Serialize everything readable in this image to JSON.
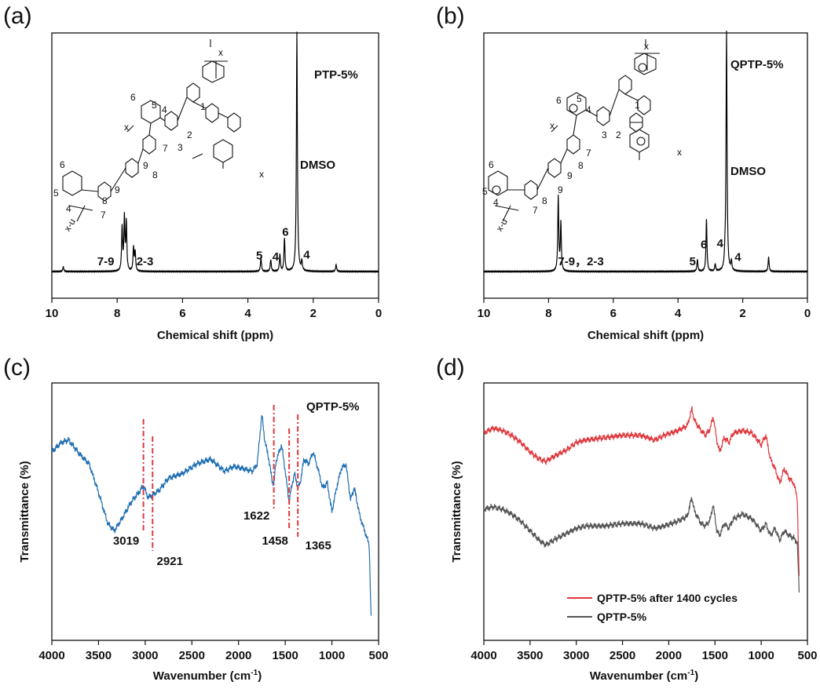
{
  "chart_data": [
    {
      "panel": "(a)",
      "type": "line",
      "title": "",
      "xlabel": "Chemical shift (ppm)",
      "ylabel": "",
      "xlim": [
        10,
        0
      ],
      "xticks": [
        "10",
        "8",
        "6",
        "4",
        "2",
        "0"
      ],
      "sample_label": "PTP-5%",
      "solvent_label": "DMSO",
      "series": [
        {
          "name": "PTP-5%",
          "color": "#000000",
          "peaks": [
            {
              "x": 9.65,
              "h": 0.02
            },
            {
              "x": 7.85,
              "h": 0.18
            },
            {
              "x": 7.78,
              "h": 0.22
            },
            {
              "x": 7.72,
              "h": 0.2
            },
            {
              "x": 7.5,
              "h": 0.1
            },
            {
              "x": 7.45,
              "h": 0.08
            },
            {
              "x": 3.6,
              "h": 0.06
            },
            {
              "x": 3.3,
              "h": 0.05
            },
            {
              "x": 3.02,
              "h": 0.07
            },
            {
              "x": 2.88,
              "h": 0.14
            },
            {
              "x": 2.5,
              "h": 1.0
            },
            {
              "x": 2.35,
              "h": 0.04
            },
            {
              "x": 1.3,
              "h": 0.03
            }
          ]
        }
      ],
      "annotations": [
        {
          "text": "7-9",
          "x": 8.35
        },
        {
          "text": "2-3",
          "x": 7.15
        },
        {
          "text": "5",
          "x": 3.65
        },
        {
          "text": "4",
          "x": 3.15
        },
        {
          "text": "6",
          "x": 2.85
        },
        {
          "text": "4",
          "x": 2.2
        }
      ],
      "structure_labels": [
        "x",
        "1",
        "2",
        "3",
        "4",
        "5",
        "6",
        "7",
        "8",
        "9",
        "x",
        "x",
        "6",
        "5",
        "4",
        "7",
        "8",
        "9",
        "x-u"
      ]
    },
    {
      "panel": "(b)",
      "type": "line",
      "title": "",
      "xlabel": "Chemical shift (ppm)",
      "ylabel": "",
      "xlim": [
        10,
        0
      ],
      "xticks": [
        "10",
        "8",
        "6",
        "4",
        "2",
        "0"
      ],
      "sample_label": "QPTP-5%",
      "solvent_label": "DMSO",
      "series": [
        {
          "name": "QPTP-5%",
          "color": "#000000",
          "peaks": [
            {
              "x": 7.7,
              "h": 0.31
            },
            {
              "x": 7.62,
              "h": 0.2
            },
            {
              "x": 3.4,
              "h": 0.05
            },
            {
              "x": 3.12,
              "h": 0.22
            },
            {
              "x": 2.85,
              "h": 0.03
            },
            {
              "x": 2.55,
              "h": 0.04
            },
            {
              "x": 2.5,
              "h": 1.0
            },
            {
              "x": 2.35,
              "h": 0.04
            },
            {
              "x": 1.2,
              "h": 0.06
            }
          ]
        }
      ],
      "annotations": [
        {
          "text": "7-9，2-3",
          "x": 7.0
        },
        {
          "text": "5",
          "x": 3.55
        },
        {
          "text": "6",
          "x": 3.2
        },
        {
          "text": "4",
          "x": 2.7
        },
        {
          "text": "4",
          "x": 2.15
        }
      ],
      "structure_labels": [
        "x",
        "1",
        "2",
        "3",
        "4",
        "5",
        "6",
        "7",
        "8",
        "9",
        "x",
        "x",
        "6",
        "5",
        "4",
        "7",
        "8",
        "9",
        "x-u"
      ]
    },
    {
      "panel": "(c)",
      "type": "line",
      "title": "",
      "xlabel": "Wavenumber (cm",
      "xlabel_sup": "-1",
      "xlabel_tail": ")",
      "ylabel": "Transmittance (%)",
      "xlim": [
        4000,
        500
      ],
      "xticks": [
        "4000",
        "3500",
        "3000",
        "2500",
        "2000",
        "1500",
        "1000",
        "500"
      ],
      "legend": "QPTP-5%",
      "series": [
        {
          "name": "QPTP-5%",
          "color": "#1f6fb2",
          "points": [
            [
              4000,
              75
            ],
            [
              3900,
              79
            ],
            [
              3820,
              80
            ],
            [
              3700,
              74
            ],
            [
              3600,
              70
            ],
            [
              3500,
              58
            ],
            [
              3400,
              45
            ],
            [
              3330,
              42
            ],
            [
              3250,
              47
            ],
            [
              3150,
              54
            ],
            [
              3050,
              59
            ],
            [
              3019,
              61
            ],
            [
              2970,
              56
            ],
            [
              2921,
              57
            ],
            [
              2850,
              59
            ],
            [
              2750,
              64
            ],
            [
              2600,
              66
            ],
            [
              2450,
              70
            ],
            [
              2300,
              72
            ],
            [
              2150,
              67
            ],
            [
              2050,
              69
            ],
            [
              1950,
              68
            ],
            [
              1850,
              67
            ],
            [
              1800,
              70
            ],
            [
              1750,
              91
            ],
            [
              1720,
              80
            ],
            [
              1680,
              73
            ],
            [
              1640,
              63
            ],
            [
              1622,
              61
            ],
            [
              1600,
              71
            ],
            [
              1540,
              78
            ],
            [
              1510,
              70
            ],
            [
              1458,
              54
            ],
            [
              1430,
              61
            ],
            [
              1400,
              66
            ],
            [
              1365,
              60
            ],
            [
              1340,
              62
            ],
            [
              1300,
              72
            ],
            [
              1250,
              70
            ],
            [
              1200,
              75
            ],
            [
              1150,
              68
            ],
            [
              1100,
              60
            ],
            [
              1050,
              62
            ],
            [
              1000,
              50
            ],
            [
              950,
              60
            ],
            [
              900,
              68
            ],
            [
              850,
              70
            ],
            [
              800,
              55
            ],
            [
              760,
              60
            ],
            [
              700,
              48
            ],
            [
              650,
              42
            ],
            [
              600,
              36
            ],
            [
              580,
              5
            ]
          ]
        }
      ],
      "annotations": [
        {
          "text": "3019",
          "x": 3019
        },
        {
          "text": "2921",
          "x": 2921
        },
        {
          "text": "1622",
          "x": 1622
        },
        {
          "text": "1458",
          "x": 1458
        },
        {
          "text": "1365",
          "x": 1365
        }
      ]
    },
    {
      "panel": "(d)",
      "type": "line",
      "title": "",
      "xlabel": "Wavenumber (cm",
      "xlabel_sup": "-1",
      "xlabel_tail": ")",
      "ylabel": "Transmittance (%)",
      "xlim": [
        4000,
        500
      ],
      "xticks": [
        "4000",
        "3500",
        "3000",
        "2500",
        "2000",
        "1500",
        "1000",
        "500"
      ],
      "series": [
        {
          "name": "QPTP-5% after 1400 cycles",
          "color": "#e0393e",
          "points": [
            [
              4000,
              83
            ],
            [
              3900,
              85
            ],
            [
              3800,
              84
            ],
            [
              3700,
              82
            ],
            [
              3600,
              79
            ],
            [
              3500,
              75
            ],
            [
              3400,
              72
            ],
            [
              3330,
              71
            ],
            [
              3250,
              73
            ],
            [
              3100,
              76
            ],
            [
              3000,
              79
            ],
            [
              2900,
              80
            ],
            [
              2700,
              81
            ],
            [
              2500,
              82
            ],
            [
              2300,
              82
            ],
            [
              2150,
              80
            ],
            [
              2050,
              82
            ],
            [
              1900,
              84
            ],
            [
              1800,
              86
            ],
            [
              1750,
              93
            ],
            [
              1720,
              88
            ],
            [
              1650,
              84
            ],
            [
              1600,
              82
            ],
            [
              1550,
              85
            ],
            [
              1520,
              90
            ],
            [
              1480,
              80
            ],
            [
              1450,
              75
            ],
            [
              1400,
              81
            ],
            [
              1350,
              79
            ],
            [
              1300,
              83
            ],
            [
              1200,
              84
            ],
            [
              1100,
              83
            ],
            [
              1000,
              78
            ],
            [
              950,
              82
            ],
            [
              900,
              72
            ],
            [
              850,
              68
            ],
            [
              800,
              62
            ],
            [
              750,
              68
            ],
            [
              700,
              64
            ],
            [
              650,
              62
            ],
            [
              610,
              56
            ],
            [
              590,
              22
            ]
          ]
        },
        {
          "name": "QPTP-5%",
          "color": "#555555",
          "points": [
            [
              4000,
              51
            ],
            [
              3900,
              52
            ],
            [
              3800,
              51
            ],
            [
              3700,
              49
            ],
            [
              3600,
              46
            ],
            [
              3500,
              42
            ],
            [
              3400,
              38
            ],
            [
              3330,
              36
            ],
            [
              3250,
              38
            ],
            [
              3100,
              41
            ],
            [
              3000,
              43
            ],
            [
              2900,
              44
            ],
            [
              2700,
              44
            ],
            [
              2500,
              45
            ],
            [
              2300,
              45
            ],
            [
              2150,
              43
            ],
            [
              2050,
              44
            ],
            [
              1900,
              46
            ],
            [
              1800,
              48
            ],
            [
              1750,
              56
            ],
            [
              1720,
              50
            ],
            [
              1650,
              45
            ],
            [
              1600,
              44
            ],
            [
              1550,
              47
            ],
            [
              1520,
              53
            ],
            [
              1480,
              42
            ],
            [
              1450,
              40
            ],
            [
              1400,
              45
            ],
            [
              1350,
              43
            ],
            [
              1300,
              47
            ],
            [
              1200,
              49
            ],
            [
              1100,
              47
            ],
            [
              1000,
              42
            ],
            [
              950,
              45
            ],
            [
              900,
              40
            ],
            [
              850,
              43
            ],
            [
              800,
              38
            ],
            [
              750,
              42
            ],
            [
              700,
              40
            ],
            [
              650,
              39
            ],
            [
              610,
              37
            ],
            [
              590,
              17
            ]
          ]
        }
      ],
      "legend": "top-right-lower"
    }
  ]
}
